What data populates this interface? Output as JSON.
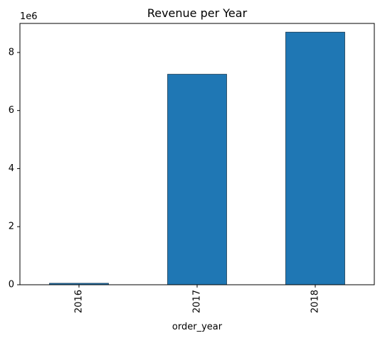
{
  "chart_data": {
    "type": "bar",
    "title": "Revenue per Year",
    "xlabel": "order_year",
    "ylabel": "",
    "categories": [
      "2016",
      "2017",
      "2018"
    ],
    "values": [
      50000,
      7250000,
      8700000
    ],
    "ylim": [
      0,
      9000000
    ],
    "yticks": [
      0,
      2,
      4,
      6,
      8
    ],
    "y_offset_label": "1e6",
    "bar_color": "#1f77b4",
    "edge_color": "#1a3a52",
    "grid": false,
    "legend": "none"
  }
}
